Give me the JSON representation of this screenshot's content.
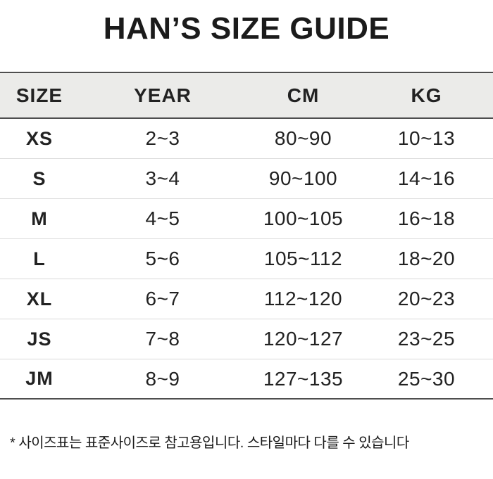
{
  "title": "HAN’S SIZE GUIDE",
  "table": {
    "headers": [
      "SIZE",
      "YEAR",
      "CM",
      "KG"
    ],
    "rows": [
      {
        "size": "XS",
        "year": "2~3",
        "cm": "80~90",
        "kg": "10~13"
      },
      {
        "size": "S",
        "year": "3~4",
        "cm": "90~100",
        "kg": "14~16"
      },
      {
        "size": "M",
        "year": "4~5",
        "cm": "100~105",
        "kg": "16~18"
      },
      {
        "size": "L",
        "year": "5~6",
        "cm": "105~112",
        "kg": "18~20"
      },
      {
        "size": "XL",
        "year": "6~7",
        "cm": "112~120",
        "kg": "20~23"
      },
      {
        "size": "JS",
        "year": "7~8",
        "cm": "120~127",
        "kg": "23~25"
      },
      {
        "size": "JM",
        "year": "8~9",
        "cm": "127~135",
        "kg": "25~30"
      }
    ]
  },
  "footnote": "* 사이즈표는 표준사이즈로 참고용입니다. 스타일마다 다를 수 있습니다",
  "colors": {
    "header_background": "#ebebe9",
    "strong_line": "#4e4e4e",
    "light_line": "#dadada",
    "text": "#1d1d1d"
  }
}
